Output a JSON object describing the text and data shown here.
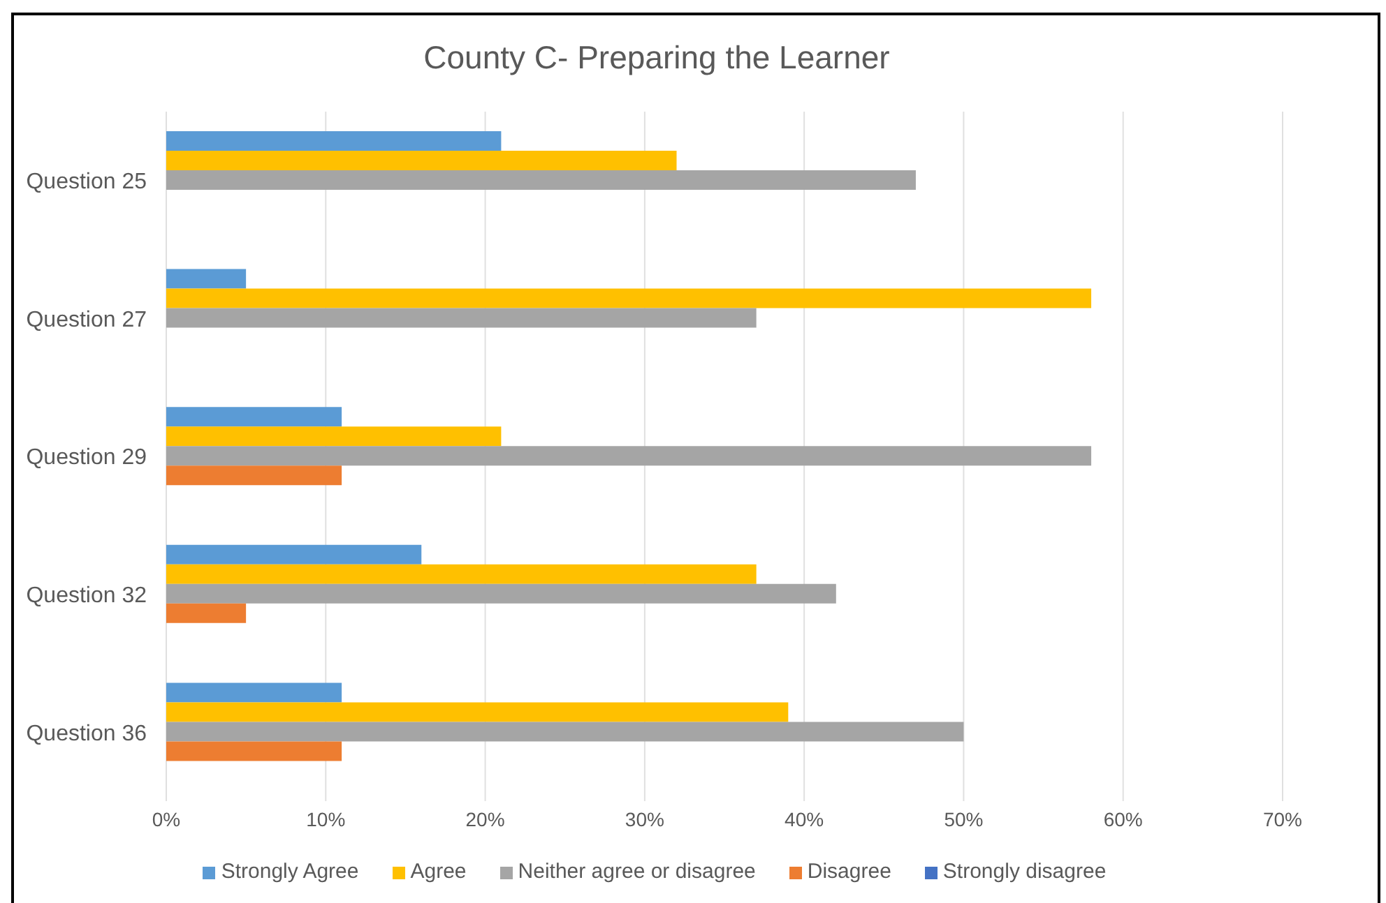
{
  "chart_data": {
    "type": "bar",
    "orientation": "horizontal",
    "title": "County C- Preparing the Learner",
    "categories": [
      "Question 25",
      "Question 27",
      "Question 29",
      "Question 32",
      "Question 36"
    ],
    "series": [
      {
        "name": "Strongly Agree",
        "color": "#5b9bd5",
        "values": [
          21,
          5,
          11,
          16,
          11
        ]
      },
      {
        "name": "Agree",
        "color": "#ffc000",
        "values": [
          32,
          58,
          21,
          37,
          39
        ]
      },
      {
        "name": "Neither agree or disagree",
        "color": "#a5a5a5",
        "values": [
          47,
          37,
          58,
          42,
          50
        ]
      },
      {
        "name": "Disagree",
        "color": "#ed7d31",
        "values": [
          0,
          0,
          11,
          5,
          11
        ]
      },
      {
        "name": "Strongly disagree",
        "color": "#4472c4",
        "values": [
          0,
          0,
          0,
          0,
          0
        ]
      }
    ],
    "xlim": [
      0,
      70
    ],
    "xticks": [
      {
        "value": 0,
        "label": "0%"
      },
      {
        "value": 10,
        "label": "10%"
      },
      {
        "value": 20,
        "label": "20%"
      },
      {
        "value": 30,
        "label": "30%"
      },
      {
        "value": 40,
        "label": "40%"
      },
      {
        "value": 50,
        "label": "50%"
      },
      {
        "value": 60,
        "label": "60%"
      },
      {
        "value": 70,
        "label": "70%"
      }
    ],
    "grid": "x",
    "legend": "bottom"
  }
}
